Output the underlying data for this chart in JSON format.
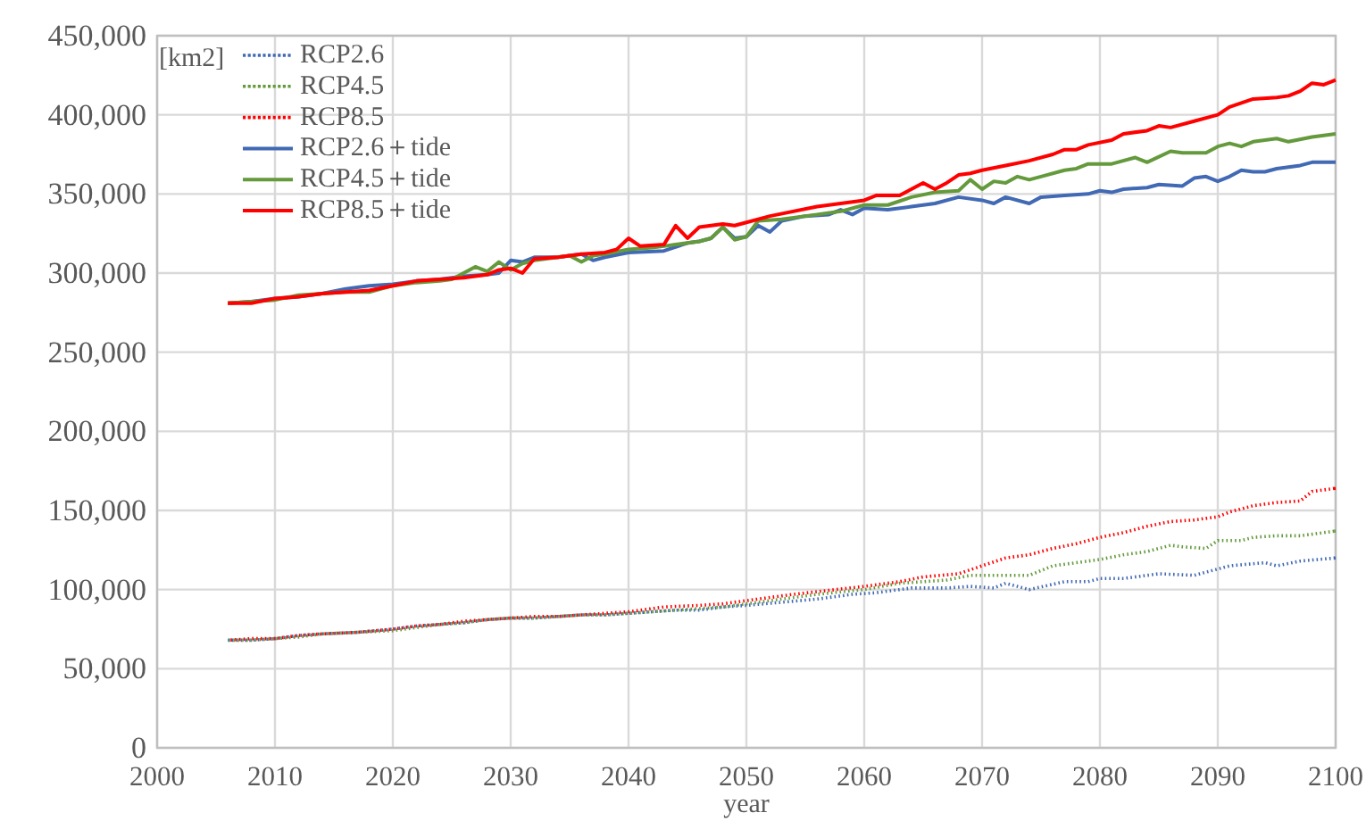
{
  "chart_data": {
    "type": "line",
    "xlabel": "year",
    "ylabel": "[km2]",
    "legend": "top left",
    "grid": true,
    "xlim": [
      2000,
      2100
    ],
    "xticks": [
      2000,
      2010,
      2020,
      2030,
      2040,
      2050,
      2060,
      2070,
      2080,
      2090,
      2100
    ],
    "ylim": [
      0,
      450000
    ],
    "yticks": [
      0,
      {
        "value": 50000,
        "label": "50,000"
      },
      {
        "value": 100000,
        "label": "100,000"
      },
      {
        "value": 150000,
        "label": "150,000"
      },
      {
        "value": 200000,
        "label": "200,000"
      },
      {
        "value": 250000,
        "label": "250,000"
      },
      {
        "value": 300000,
        "label": "300,000"
      },
      {
        "value": 350000,
        "label": "350,000"
      },
      {
        "value": 400000,
        "label": "400,000"
      },
      {
        "value": 450000,
        "label": "450,000"
      }
    ],
    "series": [
      {
        "name": "RCP2.6",
        "color": "#4169b4",
        "line_style": "dotted",
        "x": [
          2006,
          2008,
          2010,
          2012,
          2014,
          2017,
          2020,
          2022,
          2024,
          2026,
          2028,
          2030,
          2032,
          2034,
          2036,
          2038,
          2040,
          2042,
          2044,
          2046,
          2048,
          2050,
          2053,
          2056,
          2059,
          2061,
          2064,
          2067,
          2069,
          2071,
          2072,
          2074,
          2077,
          2079,
          2080,
          2082,
          2085,
          2088,
          2090,
          2091,
          2094,
          2095,
          2097,
          2100
        ],
        "values": [
          68000,
          68000,
          69000,
          71000,
          72000,
          73000,
          75000,
          77000,
          78000,
          79000,
          81000,
          82000,
          82000,
          83000,
          84000,
          84000,
          85000,
          86000,
          87000,
          87000,
          89000,
          90000,
          92000,
          94000,
          97000,
          98000,
          101000,
          101000,
          102000,
          101000,
          104000,
          100000,
          105000,
          105000,
          107000,
          107000,
          110000,
          109000,
          113000,
          115000,
          117000,
          115000,
          118000,
          120000
        ]
      },
      {
        "name": "RCP4.5",
        "color": "#649a3c",
        "line_style": "dotted",
        "x": [
          2006,
          2008,
          2010,
          2012,
          2014,
          2017,
          2020,
          2022,
          2024,
          2026,
          2028,
          2030,
          2032,
          2034,
          2036,
          2038,
          2040,
          2042,
          2044,
          2046,
          2048,
          2050,
          2053,
          2056,
          2060,
          2063,
          2067,
          2069,
          2072,
          2074,
          2076,
          2078,
          2080,
          2082,
          2084,
          2086,
          2087,
          2089,
          2090,
          2092,
          2093,
          2095,
          2097,
          2098,
          2100
        ],
        "values": [
          68000,
          68000,
          69000,
          70000,
          72000,
          73000,
          74000,
          76000,
          78000,
          79000,
          81000,
          82000,
          82000,
          83000,
          84000,
          84000,
          85000,
          86000,
          87000,
          88000,
          89000,
          91000,
          94000,
          97000,
          100000,
          104000,
          106000,
          109000,
          109000,
          109000,
          115000,
          117000,
          119000,
          122000,
          124000,
          128000,
          127000,
          126000,
          131000,
          131000,
          133000,
          134000,
          134000,
          135000,
          137000
        ]
      },
      {
        "name": "RCP8.5",
        "color": "#ff0000",
        "line_style": "dotted",
        "x": [
          2006,
          2008,
          2010,
          2012,
          2014,
          2017,
          2020,
          2022,
          2024,
          2026,
          2028,
          2030,
          2032,
          2034,
          2036,
          2038,
          2040,
          2043,
          2046,
          2048,
          2050,
          2054,
          2060,
          2063,
          2065,
          2068,
          2070,
          2072,
          2074,
          2076,
          2078,
          2080,
          2082,
          2084,
          2086,
          2088,
          2090,
          2091,
          2093,
          2095,
          2097,
          2098,
          2100
        ],
        "values": [
          68000,
          69000,
          69000,
          71000,
          72000,
          73000,
          75000,
          77000,
          78000,
          80000,
          81000,
          82000,
          83000,
          83000,
          84000,
          85000,
          86000,
          89000,
          90000,
          91000,
          93000,
          97000,
          102000,
          105000,
          108000,
          110000,
          115000,
          120000,
          122000,
          126000,
          129000,
          133000,
          136000,
          140000,
          143000,
          144000,
          146000,
          149000,
          153000,
          155000,
          156000,
          162000,
          164000
        ]
      },
      {
        "name": "RCP2.6＋tide",
        "color": "#4169b4",
        "line_style": "solid",
        "x": [
          2006,
          2008,
          2010,
          2012,
          2014,
          2016,
          2018,
          2020,
          2022,
          2024,
          2026,
          2028,
          2029,
          2030,
          2031,
          2032,
          2034,
          2036,
          2037,
          2038,
          2040,
          2043,
          2045,
          2046,
          2047,
          2048,
          2049,
          2050,
          2051,
          2052,
          2053,
          2055,
          2057,
          2058,
          2059,
          2060,
          2062,
          2064,
          2066,
          2068,
          2070,
          2071,
          2072,
          2074,
          2075,
          2077,
          2079,
          2080,
          2081,
          2082,
          2084,
          2085,
          2087,
          2088,
          2089,
          2090,
          2091,
          2092,
          2093,
          2094,
          2095,
          2097,
          2098,
          2100
        ],
        "values": [
          281000,
          282000,
          284000,
          285000,
          287000,
          290000,
          292000,
          293000,
          295000,
          296000,
          298000,
          299000,
          300000,
          308000,
          307000,
          310000,
          310000,
          312000,
          308000,
          310000,
          313000,
          314000,
          319000,
          320000,
          322000,
          329000,
          322000,
          323000,
          330000,
          326000,
          333000,
          336000,
          337000,
          340000,
          337000,
          341000,
          340000,
          342000,
          344000,
          348000,
          346000,
          344000,
          348000,
          344000,
          348000,
          349000,
          350000,
          352000,
          351000,
          353000,
          354000,
          356000,
          355000,
          360000,
          361000,
          358000,
          361000,
          365000,
          364000,
          364000,
          366000,
          368000,
          370000,
          370000
        ]
      },
      {
        "name": "RCP4.5＋tide",
        "color": "#649a3c",
        "line_style": "solid",
        "x": [
          2006,
          2008,
          2010,
          2012,
          2014,
          2016,
          2018,
          2020,
          2022,
          2024,
          2025,
          2027,
          2028,
          2029,
          2030,
          2031,
          2032,
          2034,
          2035,
          2036,
          2037,
          2038,
          2040,
          2042,
          2044,
          2046,
          2047,
          2048,
          2049,
          2050,
          2051,
          2053,
          2056,
          2058,
          2060,
          2062,
          2064,
          2066,
          2068,
          2069,
          2070,
          2071,
          2072,
          2073,
          2074,
          2075,
          2077,
          2078,
          2079,
          2081,
          2083,
          2084,
          2086,
          2087,
          2089,
          2090,
          2091,
          2092,
          2093,
          2095,
          2096,
          2098,
          2100
        ],
        "values": [
          281000,
          282000,
          283000,
          286000,
          287000,
          288000,
          288000,
          292000,
          294000,
          295000,
          296000,
          304000,
          301000,
          307000,
          302000,
          306000,
          308000,
          310000,
          311000,
          307000,
          311000,
          312000,
          315000,
          316000,
          318000,
          320000,
          322000,
          329000,
          321000,
          323000,
          333000,
          334000,
          337000,
          339000,
          343000,
          343000,
          348000,
          351000,
          352000,
          359000,
          353000,
          358000,
          357000,
          361000,
          359000,
          361000,
          365000,
          366000,
          369000,
          369000,
          373000,
          370000,
          377000,
          376000,
          376000,
          380000,
          382000,
          380000,
          383000,
          385000,
          383000,
          386000,
          388000
        ]
      },
      {
        "name": "RCP8.5＋tide",
        "color": "#ff0000",
        "line_style": "solid",
        "x": [
          2006,
          2008,
          2010,
          2012,
          2014,
          2016,
          2018,
          2020,
          2022,
          2024,
          2026,
          2028,
          2029,
          2030,
          2031,
          2032,
          2034,
          2036,
          2038,
          2039,
          2040,
          2041,
          2043,
          2044,
          2045,
          2046,
          2048,
          2049,
          2050,
          2052,
          2056,
          2060,
          2061,
          2063,
          2065,
          2066,
          2067,
          2068,
          2069,
          2070,
          2072,
          2074,
          2076,
          2077,
          2078,
          2079,
          2081,
          2082,
          2084,
          2085,
          2086,
          2088,
          2090,
          2091,
          2093,
          2095,
          2096,
          2097,
          2098,
          2099,
          2100
        ],
        "values": [
          281000,
          281000,
          284000,
          285000,
          287000,
          288000,
          289000,
          292000,
          295000,
          296000,
          297000,
          299000,
          302000,
          303000,
          300000,
          309000,
          310000,
          312000,
          313000,
          315000,
          322000,
          317000,
          318000,
          330000,
          322000,
          329000,
          331000,
          330000,
          332000,
          336000,
          342000,
          346000,
          349000,
          349000,
          357000,
          353000,
          357000,
          362000,
          363000,
          365000,
          368000,
          371000,
          375000,
          378000,
          378000,
          381000,
          384000,
          388000,
          390000,
          393000,
          392000,
          396000,
          400000,
          405000,
          410000,
          411000,
          412000,
          415000,
          420000,
          419000,
          422000
        ]
      }
    ]
  }
}
